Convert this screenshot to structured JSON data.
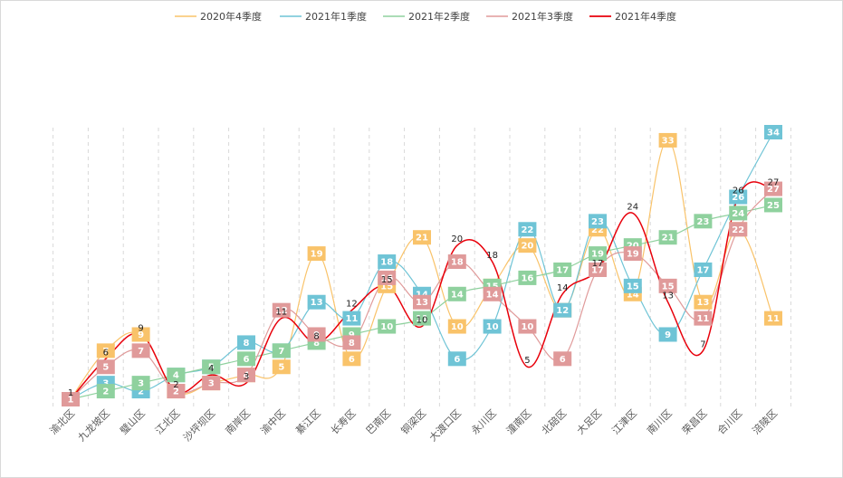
{
  "chart_data": {
    "type": "line",
    "categories": [
      "渝北区",
      "九龙坡区",
      "璧山区",
      "江北区",
      "沙坪坝区",
      "南岸区",
      "渝中区",
      "綦江区",
      "长寿区",
      "巴南区",
      "铜梁区",
      "大渡口区",
      "永川区",
      "潼南区",
      "北碚区",
      "大足区",
      "江津区",
      "南川区",
      "荣昌区",
      "合川区",
      "涪陵区"
    ],
    "series": [
      {
        "name": "2020年4季度",
        "color": "#f9c36a",
        "label_style": "box",
        "values": [
          1,
          7,
          9,
          2,
          3,
          4,
          5,
          19,
          6,
          15,
          21,
          10,
          15,
          20,
          12,
          22,
          14,
          33,
          13,
          22,
          11
        ]
      },
      {
        "name": "2021年1季度",
        "color": "#6fc4d6",
        "label_style": "box",
        "values": [
          1,
          3,
          2,
          4,
          5,
          8,
          7,
          13,
          11,
          18,
          14,
          6,
          10,
          22,
          12,
          23,
          15,
          9,
          17,
          26,
          34
        ]
      },
      {
        "name": "2021年2季度",
        "color": "#8fd19e",
        "label_style": "box",
        "values": [
          1,
          2,
          3,
          4,
          5,
          6,
          7,
          8,
          9,
          10,
          11,
          14,
          15,
          16,
          17,
          19,
          20,
          21,
          23,
          24,
          25
        ]
      },
      {
        "name": "2021年3季度",
        "color": "#e09a9a",
        "label_style": "box",
        "values": [
          1,
          5,
          7,
          2,
          3,
          4,
          12,
          9,
          8,
          16,
          13,
          18,
          14,
          10,
          6,
          17,
          19,
          15,
          11,
          22,
          27
        ]
      },
      {
        "name": "2021年4季度",
        "color": "#e8000b",
        "label_style": "plain",
        "values": [
          1,
          6,
          9,
          2,
          4,
          3,
          11,
          8,
          12,
          15,
          10,
          20,
          18,
          5,
          14,
          17,
          24,
          13,
          7,
          26,
          27
        ]
      }
    ],
    "ylim": [
      0,
      40
    ],
    "grid": "vertical dashed",
    "legend": "top-center"
  }
}
